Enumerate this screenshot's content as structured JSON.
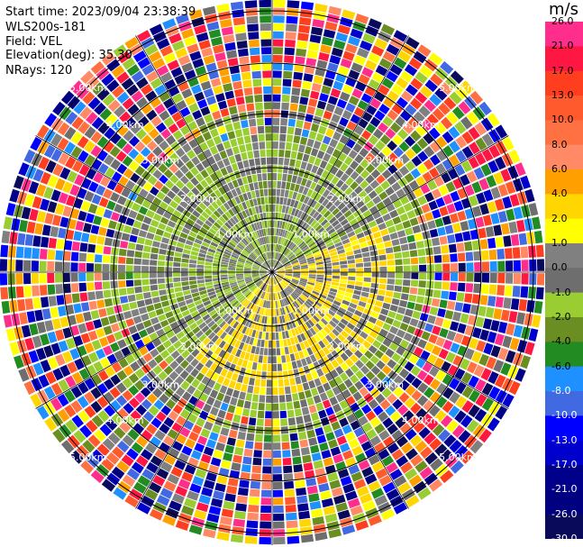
{
  "header": {
    "start_time": "Start time: 2023/09/04 23:38:39",
    "station": "WLS200s-181",
    "field": "Field: VEL",
    "elevation": "Elevation(deg): 35.30",
    "nrays": "NRays: 120"
  },
  "colorbar": {
    "unit": "m/s",
    "labels": [
      "26.0",
      "21.0",
      "17.0",
      "13.0",
      "10.0",
      "8.0",
      "6.0",
      "4.0",
      "2.0",
      "1.0",
      "0.0",
      "-1.0",
      "-2.0",
      "-4.0",
      "-6.0",
      "-8.0",
      "-10.0",
      "-13.0",
      "-17.0",
      "-21.0",
      "-26.0",
      "-30.0"
    ],
    "colors": [
      "#ff2d8c",
      "#ff1744",
      "#ff3d1f",
      "#ff5a2e",
      "#ff7043",
      "#ff8a65",
      "#ffa000",
      "#ffd600",
      "#ffff00",
      "#808080",
      "#6e6e6e",
      "#9acd32",
      "#6b8e23",
      "#228b22",
      "#1e90ff",
      "#4169e1",
      "#0000ff",
      "#0000cd",
      "#00008b",
      "#000080",
      "#0a0a5a"
    ]
  },
  "range_rings": {
    "labels": [
      "1.00km",
      "2.00km",
      "3.00km",
      "4.00km",
      "5.00km"
    ]
  }
}
